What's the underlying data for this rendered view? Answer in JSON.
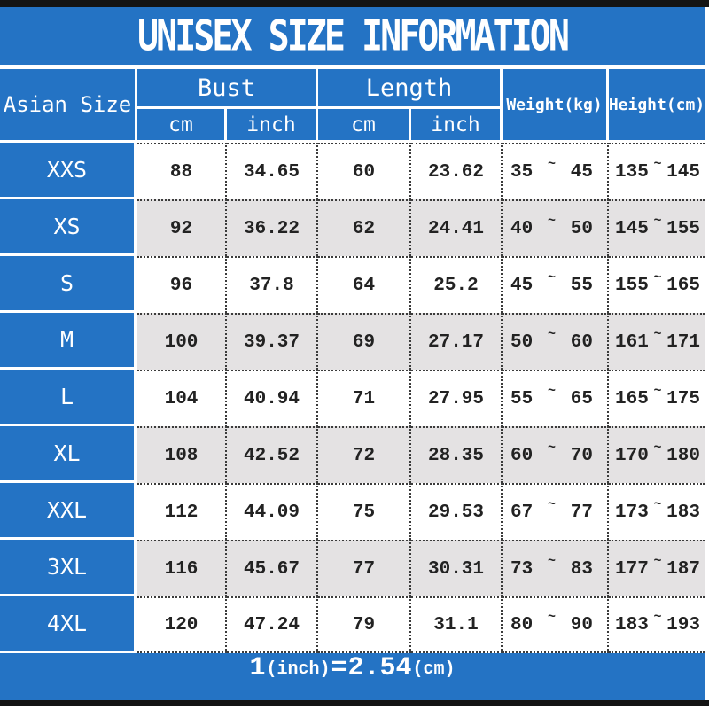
{
  "title": "UNISEX SIZE INFORMATION",
  "table": {
    "headers": {
      "size": "Asian Size",
      "bust": "Bust",
      "length": "Length",
      "weight": "Weight(kg)",
      "height": "Height(cm)",
      "unit_cm": "cm",
      "unit_inch": "inch"
    },
    "tilde": "~",
    "rows": [
      {
        "size": "XXS",
        "bust_cm": "88",
        "bust_inch": "34.65",
        "length_cm": "60",
        "length_inch": "23.62",
        "weight_min": "35",
        "weight_max": "45",
        "height_min": "135",
        "height_max": "145"
      },
      {
        "size": "XS",
        "bust_cm": "92",
        "bust_inch": "36.22",
        "length_cm": "62",
        "length_inch": "24.41",
        "weight_min": "40",
        "weight_max": "50",
        "height_min": "145",
        "height_max": "155"
      },
      {
        "size": "S",
        "bust_cm": "96",
        "bust_inch": "37.8",
        "length_cm": "64",
        "length_inch": "25.2",
        "weight_min": "45",
        "weight_max": "55",
        "height_min": "155",
        "height_max": "165"
      },
      {
        "size": "M",
        "bust_cm": "100",
        "bust_inch": "39.37",
        "length_cm": "69",
        "length_inch": "27.17",
        "weight_min": "50",
        "weight_max": "60",
        "height_min": "161",
        "height_max": "171"
      },
      {
        "size": "L",
        "bust_cm": "104",
        "bust_inch": "40.94",
        "length_cm": "71",
        "length_inch": "27.95",
        "weight_min": "55",
        "weight_max": "65",
        "height_min": "165",
        "height_max": "175"
      },
      {
        "size": "XL",
        "bust_cm": "108",
        "bust_inch": "42.52",
        "length_cm": "72",
        "length_inch": "28.35",
        "weight_min": "60",
        "weight_max": "70",
        "height_min": "170",
        "height_max": "180"
      },
      {
        "size": "XXL",
        "bust_cm": "112",
        "bust_inch": "44.09",
        "length_cm": "75",
        "length_inch": "29.53",
        "weight_min": "67",
        "weight_max": "77",
        "height_min": "173",
        "height_max": "183"
      },
      {
        "size": "3XL",
        "bust_cm": "116",
        "bust_inch": "45.67",
        "length_cm": "77",
        "length_inch": "30.31",
        "weight_min": "73",
        "weight_max": "83",
        "height_min": "177",
        "height_max": "187"
      },
      {
        "size": "4XL",
        "bust_cm": "120",
        "bust_inch": "47.24",
        "length_cm": "79",
        "length_inch": "31.1",
        "weight_min": "80",
        "weight_max": "90",
        "height_min": "183",
        "height_max": "193"
      }
    ]
  },
  "footer": {
    "value_1": "1",
    "unit_1": "(inch)",
    "equals": "=",
    "value_2": "2.54",
    "unit_2": "(cm)"
  },
  "colors": {
    "blue": "#2473c4",
    "alt_row": "#e4e2e3",
    "bar": "#141414",
    "dotted_border": "#3b3b3b",
    "text_dark": "#222222",
    "text_light": "#ffffff"
  }
}
